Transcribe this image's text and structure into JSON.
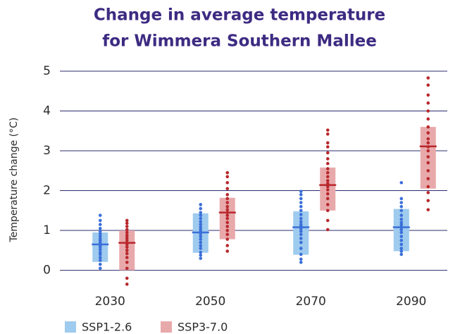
{
  "chart_data": {
    "type": "box-dots",
    "title": [
      "Change in average temperature",
      "for Wimmera Southern Mallee"
    ],
    "y_label": "Temperature change (°C)",
    "categories": [
      "2030",
      "2050",
      "2070",
      "2090"
    ],
    "ylim": [
      -0.45,
      5
    ],
    "yticks": [
      0,
      1,
      2,
      3,
      4,
      5
    ],
    "grid": true,
    "series": [
      {
        "name": "SSP1-2.6",
        "color": "#3b6fd9",
        "box_color": "#9ecbee",
        "low": [
          0.21,
          0.44,
          0.39,
          0.48
        ],
        "high": [
          0.95,
          1.43,
          1.48,
          1.54
        ],
        "median": [
          0.65,
          0.95,
          1.08,
          1.08
        ],
        "points": [
          [
            0.05,
            0.15,
            0.25,
            0.32,
            0.4,
            0.45,
            0.52,
            0.58,
            0.62,
            0.66,
            0.7,
            0.75,
            0.8,
            0.86,
            0.92,
            0.98,
            1.05,
            1.15,
            1.25,
            1.38
          ],
          [
            0.3,
            0.38,
            0.45,
            0.55,
            0.62,
            0.7,
            0.78,
            0.85,
            0.92,
            0.97,
            1.02,
            1.08,
            1.15,
            1.22,
            1.3,
            1.38,
            1.45,
            1.55,
            1.65
          ],
          [
            0.2,
            0.28,
            0.4,
            0.55,
            0.7,
            0.8,
            0.9,
            0.98,
            1.05,
            1.1,
            1.15,
            1.22,
            1.3,
            1.4,
            1.5,
            1.6,
            1.7,
            1.8,
            1.9,
            1.98
          ],
          [
            0.4,
            0.48,
            0.55,
            0.65,
            0.75,
            0.85,
            0.95,
            1.02,
            1.08,
            1.14,
            1.2,
            1.28,
            1.38,
            1.5,
            1.6,
            1.7,
            1.8,
            2.2
          ]
        ]
      },
      {
        "name": "SSP3-7.0",
        "color": "#b8282c",
        "box_color": "#e8a9ab",
        "low": [
          0.0,
          0.78,
          1.5,
          2.05
        ],
        "high": [
          1.0,
          1.82,
          2.58,
          3.6
        ],
        "median": [
          0.69,
          1.45,
          2.14,
          3.11
        ],
        "points": [
          [
            -0.35,
            -0.2,
            0.05,
            0.2,
            0.32,
            0.42,
            0.5,
            0.58,
            0.65,
            0.7,
            0.76,
            0.82,
            0.88,
            0.95,
            1.02,
            1.1,
            1.18,
            1.25
          ],
          [
            0.48,
            0.62,
            0.78,
            0.9,
            1.0,
            1.1,
            1.2,
            1.3,
            1.38,
            1.45,
            1.52,
            1.6,
            1.7,
            1.8,
            1.9,
            2.05,
            2.2,
            2.35,
            2.45
          ],
          [
            1.02,
            1.25,
            1.5,
            1.65,
            1.8,
            1.92,
            2.02,
            2.1,
            2.18,
            2.25,
            2.35,
            2.45,
            2.55,
            2.68,
            2.8,
            2.95,
            3.1,
            3.2,
            3.42,
            3.52
          ],
          [
            1.52,
            1.75,
            1.95,
            2.1,
            2.3,
            2.5,
            2.7,
            2.85,
            3.0,
            3.1,
            3.2,
            3.3,
            3.45,
            3.6,
            3.8,
            4.0,
            4.2,
            4.4,
            4.65,
            4.83
          ]
        ]
      }
    ]
  }
}
